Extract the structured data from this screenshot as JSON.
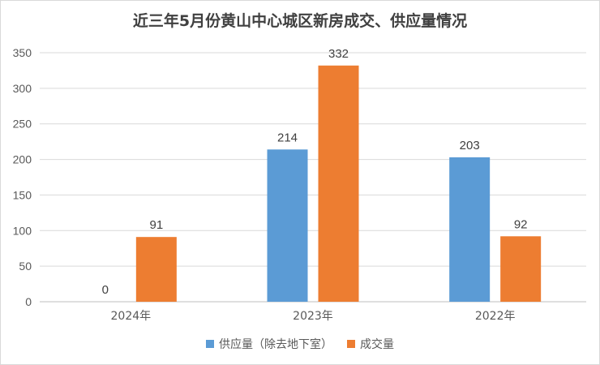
{
  "chart_data": {
    "type": "bar",
    "title": "近三年5月份黄山中心城区新房成交、供应量情况",
    "categories": [
      "2024年",
      "2023年",
      "2022年"
    ],
    "series": [
      {
        "name": "供应量（除去地下室）",
        "color": "#5b9bd5",
        "values": [
          0,
          214,
          203
        ]
      },
      {
        "name": "成交量",
        "color": "#ed7d31",
        "values": [
          91,
          332,
          92
        ]
      }
    ],
    "ylim": [
      0,
      350
    ],
    "yticks": [
      0,
      50,
      100,
      150,
      200,
      250,
      300,
      350
    ],
    "grid": true,
    "legend_position": "bottom",
    "xlabel": "",
    "ylabel": ""
  }
}
